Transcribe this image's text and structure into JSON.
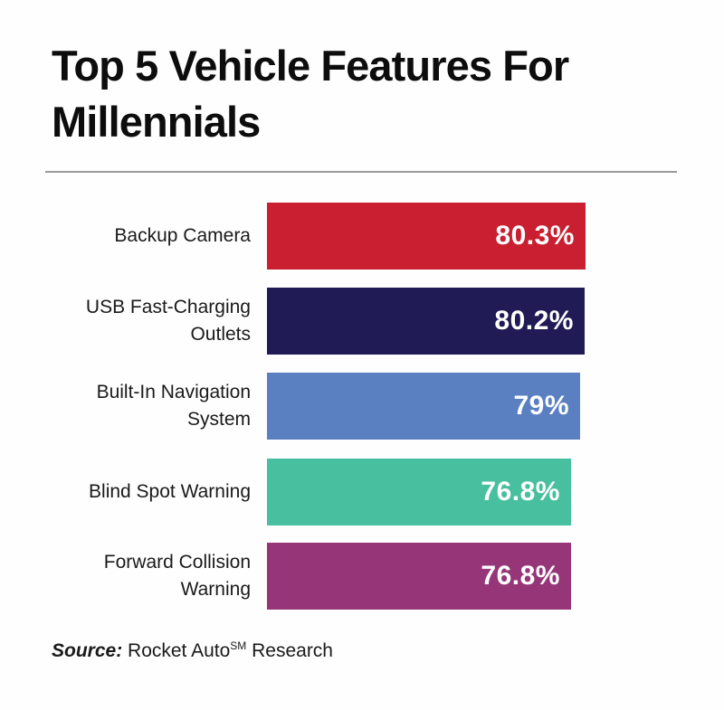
{
  "chart_data": {
    "type": "bar",
    "orientation": "horizontal",
    "title_lines": [
      "Top 5 Vehicle Features For",
      "Millennials"
    ],
    "categories": [
      [
        "Backup Camera"
      ],
      [
        "USB Fast-Charging",
        "Outlets"
      ],
      [
        "Built-In Navigation",
        "System"
      ],
      [
        "Blind Spot Warning"
      ],
      [
        "Forward Collision",
        "Warning"
      ]
    ],
    "values": [
      80.3,
      80.2,
      79,
      76.8,
      76.8
    ],
    "value_labels": [
      "80.3%",
      "80.2%",
      "79%",
      "76.8%",
      "76.8%"
    ],
    "colors": [
      "#c91f30",
      "#201a55",
      "#5a80c2",
      "#48bf9f",
      "#963679"
    ],
    "xlabel": "",
    "ylabel": "",
    "grid": false,
    "legend": "none"
  },
  "source": {
    "prefix": "Source:",
    "name": "Rocket Auto",
    "mark": "SM",
    "suffix": "Research"
  }
}
